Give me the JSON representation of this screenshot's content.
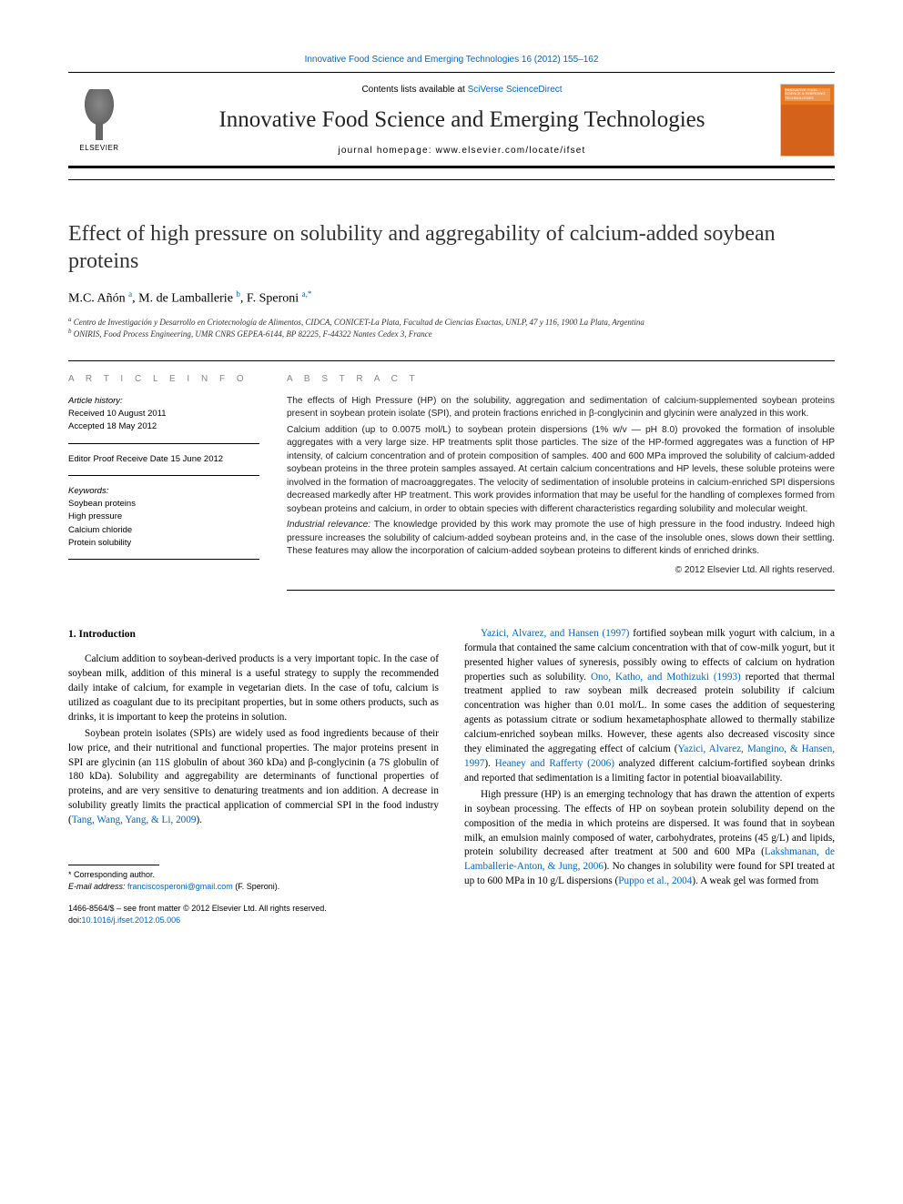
{
  "topLink": "Innovative Food Science and Emerging Technologies 16 (2012) 155–162",
  "header": {
    "contentsPrefix": "Contents lists available at ",
    "contentsLink": "SciVerse ScienceDirect",
    "journalName": "Innovative Food Science and Emerging Technologies",
    "homepagePrefix": "journal homepage: ",
    "homepage": "www.elsevier.com/locate/ifset",
    "publisher": "ELSEVIER",
    "coverLabel": "INNOVATIVE FOOD SCIENCE & EMERGING TECHNOLOGIES"
  },
  "article": {
    "title": "Effect of high pressure on solubility and aggregability of calcium-added soybean proteins",
    "authors": [
      {
        "name": "M.C. Añón",
        "aff": "a"
      },
      {
        "name": "M. de Lamballerie",
        "aff": "b"
      },
      {
        "name": "F. Speroni",
        "aff": "a",
        "corresponding": true
      }
    ],
    "affiliations": [
      {
        "key": "a",
        "text": "Centro de Investigación y Desarrollo en Criotecnología de Alimentos, CIDCA, CONICET-La Plata, Facultad de Ciencias Exactas, UNLP, 47 y 116, 1900 La Plata, Argentina"
      },
      {
        "key": "b",
        "text": "ONIRIS, Food Process Engineering, UMR CNRS GEPEA-6144, BP 82225, F-44322 Nantes Cedex 3, France"
      }
    ]
  },
  "info": {
    "headerLabel": "A R T I C L E   I N F O",
    "historyLabel": "Article history:",
    "received": "Received 10 August 2011",
    "accepted": "Accepted 18 May 2012",
    "editorProof": "Editor Proof Receive Date 15 June 2012",
    "keywordsLabel": "Keywords:",
    "keywords": [
      "Soybean proteins",
      "High pressure",
      "Calcium chloride",
      "Protein solubility"
    ]
  },
  "abstract": {
    "headerLabel": "A B S T R A C T",
    "p1": "The effects of High Pressure (HP) on the solubility, aggregation and sedimentation of calcium-supplemented soybean proteins present in soybean protein isolate (SPI), and protein fractions enriched in β-conglycinin and glycinin were analyzed in this work.",
    "p2": "Calcium addition (up to 0.0075 mol/L) to soybean protein dispersions (1% w/v — pH 8.0) provoked the formation of insoluble aggregates with a very large size. HP treatments split those particles. The size of the HP-formed aggregates was a function of HP intensity, of calcium concentration and of protein composition of samples. 400 and 600 MPa improved the solubility of calcium-added soybean proteins in the three protein samples assayed. At certain calcium concentrations and HP levels, these soluble proteins were involved in the formation of macroaggregates. The velocity of sedimentation of insoluble proteins in calcium-enriched SPI dispersions decreased markedly after HP treatment. This work provides information that may be useful for the handling of complexes formed from soybean proteins and calcium, in order to obtain species with different characteristics regarding solubility and molecular weight.",
    "relevanceLabel": "Industrial relevance:",
    "relevance": "The knowledge provided by this work may promote the use of high pressure in the food industry. Indeed high pressure increases the solubility of calcium-added soybean proteins and, in the case of the insoluble ones, slows down their settling. These features may allow the incorporation of calcium-added soybean proteins to different kinds of enriched drinks.",
    "copyright": "© 2012 Elsevier Ltd. All rights reserved."
  },
  "body": {
    "sectionHead": "1. Introduction",
    "left": {
      "p1": "Calcium addition to soybean-derived products is a very important topic. In the case of soybean milk, addition of this mineral is a useful strategy to supply the recommended daily intake of calcium, for example in vegetarian diets. In the case of tofu, calcium is utilized as coagulant due to its precipitant properties, but in some others products, such as drinks, it is important to keep the proteins in solution.",
      "p2a": "Soybean protein isolates (SPIs) are widely used as food ingredients because of their low price, and their nutritional and functional properties. The major proteins present in SPI are glycinin (an 11S globulin of about 360 kDa) and β-conglycinin (a 7S globulin of 180 kDa). Solubility and aggregability are determinants of functional properties of proteins, and are very sensitive to denaturing treatments and ion addition. A decrease in solubility greatly limits the practical application of commercial SPI in the food industry (",
      "p2link": "Tang, Wang, Yang, & Li, 2009",
      "p2b": ")."
    },
    "right": {
      "p1a": "",
      "p1link1": "Yazici, Alvarez, and Hansen (1997)",
      "p1b": " fortified soybean milk yogurt with calcium, in a formula that contained the same calcium concentration with that of cow-milk yogurt, but it presented higher values of syneresis, possibly owing to effects of calcium on hydration properties such as solubility. ",
      "p1link2": "Ono, Katho, and Mothizuki (1993)",
      "p1c": " reported that thermal treatment applied to raw soybean milk decreased protein solubility if calcium concentration was higher than 0.01 mol/L. In some cases the addition of sequestering agents as potassium citrate or sodium hexametaphosphate allowed to thermally stabilize calcium-enriched soybean milks. However, these agents also decreased viscosity since they eliminated the aggregating effect of calcium (",
      "p1link3": "Yazici, Alvarez, Mangino, & Hansen, 1997",
      "p1d": "). ",
      "p1link4": "Heaney and Rafferty (2006)",
      "p1e": " analyzed different calcium-fortified soybean drinks and reported that sedimentation is a limiting factor in potential bioavailability.",
      "p2a": "High pressure (HP) is an emerging technology that has drawn the attention of experts in soybean processing. The effects of HP on soybean protein solubility depend on the composition of the media in which proteins are dispersed. It was found that in soybean milk, an emulsion mainly composed of water, carbohydrates, proteins (45 g/L) and lipids, protein solubility decreased after treatment at 500 and 600 MPa (",
      "p2link1": "Lakshmanan, de Lamballerie-Anton, & Jung, 2006",
      "p2b": "). No changes in solubility were found for SPI treated at up to 600 MPa in 10 g/L dispersions (",
      "p2link2": "Puppo et al., 2004",
      "p2c": "). A weak gel was formed from"
    }
  },
  "footer": {
    "corrLabel": "* Corresponding author.",
    "emailLabel": "E-mail address:",
    "email": "franciscosperoni@gmail.com",
    "emailSuffix": "(F. Speroni).",
    "issnLine": "1466-8564/$ – see front matter © 2012 Elsevier Ltd. All rights reserved.",
    "doiLabel": "doi:",
    "doi": "10.1016/j.ifset.2012.05.006"
  },
  "colors": {
    "link": "#0066cc",
    "text": "#000000",
    "muted": "#888888",
    "cover": "#e8751a"
  },
  "typography": {
    "titleFontSize": 24,
    "journalNameFontSize": 25,
    "bodyFontSize": 11.2,
    "abstractFontSize": 10.2,
    "footerFontSize": 9
  }
}
